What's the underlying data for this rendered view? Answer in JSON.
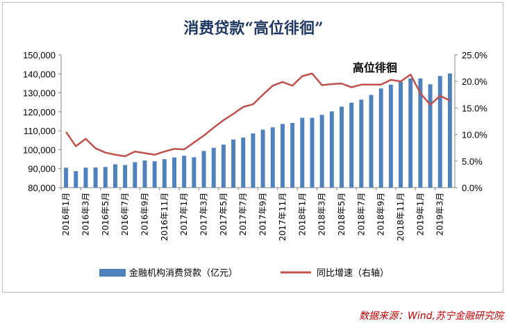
{
  "chart_data": {
    "type": "bar+line",
    "title": "消费贷款“高位徘徊”",
    "annotation": "高位徘徊",
    "categories": [
      "2016年1月",
      "2016年2月",
      "2016年3月",
      "2016年4月",
      "2016年5月",
      "2016年6月",
      "2016年7月",
      "2016年8月",
      "2016年9月",
      "2016年10月",
      "2016年11月",
      "2016年12月",
      "2017年1月",
      "2017年2月",
      "2017年3月",
      "2017年4月",
      "2017年5月",
      "2017年6月",
      "2017年7月",
      "2017年8月",
      "2017年9月",
      "2017年10月",
      "2017年11月",
      "2017年12月",
      "2018年1月",
      "2018年2月",
      "2018年3月",
      "2018年4月",
      "2018年5月",
      "2018年6月",
      "2018年7月",
      "2018年8月",
      "2018年9月",
      "2018年10月",
      "2018年11月",
      "2018年12月",
      "2019年1月",
      "2019年2月",
      "2019年3月",
      "2019年4月"
    ],
    "x_tick_labels": [
      "2016年1月",
      "2016年3月",
      "2016年5月",
      "2016年7月",
      "2016年9月",
      "2016年11月",
      "2017年1月",
      "2017年3月",
      "2017年5月",
      "2017年7月",
      "2017年9月",
      "2017年11月",
      "2018年1月",
      "2018年3月",
      "2018年5月",
      "2018年7月",
      "2018年9月",
      "2018年11月",
      "2019年1月",
      "2019年3月"
    ],
    "series": [
      {
        "name": "金融机构消费贷款（亿元）",
        "type": "bar",
        "axis": "left",
        "color": "#4f81bd",
        "values": [
          90500,
          88700,
          90500,
          90600,
          90900,
          92300,
          91900,
          93400,
          94300,
          93900,
          95000,
          95900,
          96800,
          96000,
          99300,
          101000,
          102700,
          105400,
          106400,
          108600,
          110600,
          111800,
          113600,
          114100,
          116800,
          116800,
          118400,
          120200,
          122700,
          124800,
          126400,
          128900,
          132300,
          134300,
          135800,
          137600,
          137600,
          134500,
          138900,
          140200
        ]
      },
      {
        "name": "同比增速（右轴）",
        "type": "line",
        "axis": "right",
        "color": "#c0504d",
        "values": [
          10.5,
          7.8,
          9.2,
          7.4,
          6.6,
          6.2,
          5.9,
          6.8,
          6.5,
          6.2,
          6.8,
          7.3,
          7.2,
          8.5,
          9.8,
          11.3,
          12.7,
          13.9,
          15.2,
          15.7,
          17.5,
          19.2,
          19.9,
          19.2,
          21.0,
          21.5,
          19.3,
          19.5,
          19.6,
          18.9,
          19.4,
          19.4,
          19.4,
          20.3,
          20.0,
          21.3,
          17.8,
          15.6,
          17.3,
          16.4
        ]
      }
    ],
    "left_axis": {
      "min": 80000,
      "max": 150000,
      "step": 10000,
      "tick_labels": [
        "80,000",
        "90,000",
        "100,000",
        "110,000",
        "120,000",
        "130,000",
        "140,000",
        "150,000"
      ]
    },
    "right_axis": {
      "min": 0,
      "max": 25,
      "step": 5,
      "tick_labels": [
        "0.0%",
        "5.0%",
        "10.0%",
        "15.0%",
        "20.0%",
        "25.0%"
      ]
    },
    "legend": {
      "placement": "bottom",
      "items": [
        "金融机构消费贷款（亿元）",
        "同比增速（右轴）"
      ]
    }
  },
  "source": "数据来源：Wind,苏宁金融研究院"
}
